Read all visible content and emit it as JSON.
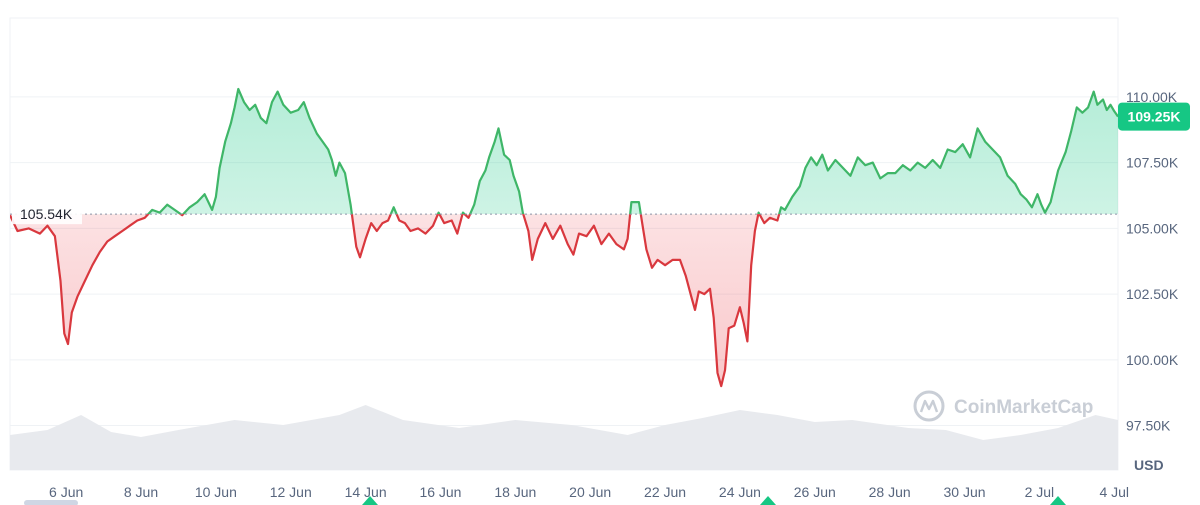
{
  "chart_data": {
    "type": "area",
    "currency": "USD",
    "reference_price": 105540,
    "reference_label": "105.54K",
    "current_price_label": "109.25K",
    "watermark": "CoinMarketCap",
    "colors": {
      "up": "#16c784",
      "up_line": "#3fb668",
      "down": "#ea3943",
      "down_line": "#d9383e",
      "grid": "#eff2f5",
      "volume": "#e8eaee"
    },
    "ylim": [
      96000,
      113000
    ],
    "y_ticks": [
      {
        "value": 110000,
        "label": "110.00K"
      },
      {
        "value": 107500,
        "label": "107.50K"
      },
      {
        "value": 105000,
        "label": "105.00K"
      },
      {
        "value": 102500,
        "label": "102.50K"
      },
      {
        "value": 100000,
        "label": "100.00K"
      },
      {
        "value": 97500,
        "label": "97.50K"
      }
    ],
    "xlim": [
      4.5,
      34.1
    ],
    "x_ticks": [
      {
        "day": 6,
        "label": "6 Jun"
      },
      {
        "day": 8,
        "label": "8 Jun"
      },
      {
        "day": 10,
        "label": "10 Jun"
      },
      {
        "day": 12,
        "label": "12 Jun"
      },
      {
        "day": 14,
        "label": "14 Jun"
      },
      {
        "day": 16,
        "label": "16 Jun"
      },
      {
        "day": 18,
        "label": "18 Jun"
      },
      {
        "day": 20,
        "label": "20 Jun"
      },
      {
        "day": 22,
        "label": "22 Jun"
      },
      {
        "day": 24,
        "label": "24 Jun"
      },
      {
        "day": 26,
        "label": "26 Jun"
      },
      {
        "day": 28,
        "label": "28 Jun"
      },
      {
        "day": 30,
        "label": "30 Jun"
      },
      {
        "day": 32,
        "label": "2 Jul"
      },
      {
        "day": 34,
        "label": "4 Jul"
      }
    ],
    "points": [
      [
        4.5,
        105500
      ],
      [
        4.7,
        104900
      ],
      [
        5.0,
        105000
      ],
      [
        5.3,
        104800
      ],
      [
        5.5,
        105100
      ],
      [
        5.7,
        104700
      ],
      [
        5.85,
        103000
      ],
      [
        5.95,
        101000
      ],
      [
        6.05,
        100600
      ],
      [
        6.15,
        101800
      ],
      [
        6.3,
        102400
      ],
      [
        6.5,
        103000
      ],
      [
        6.7,
        103600
      ],
      [
        6.9,
        104100
      ],
      [
        7.1,
        104500
      ],
      [
        7.3,
        104700
      ],
      [
        7.5,
        104900
      ],
      [
        7.7,
        105100
      ],
      [
        7.9,
        105300
      ],
      [
        8.1,
        105400
      ],
      [
        8.3,
        105700
      ],
      [
        8.5,
        105600
      ],
      [
        8.7,
        105900
      ],
      [
        8.9,
        105700
      ],
      [
        9.1,
        105500
      ],
      [
        9.3,
        105800
      ],
      [
        9.5,
        106000
      ],
      [
        9.7,
        106300
      ],
      [
        9.9,
        105700
      ],
      [
        10.0,
        106200
      ],
      [
        10.1,
        107300
      ],
      [
        10.25,
        108300
      ],
      [
        10.4,
        109000
      ],
      [
        10.5,
        109600
      ],
      [
        10.6,
        110300
      ],
      [
        10.75,
        109800
      ],
      [
        10.9,
        109500
      ],
      [
        11.05,
        109700
      ],
      [
        11.2,
        109200
      ],
      [
        11.35,
        109000
      ],
      [
        11.5,
        109800
      ],
      [
        11.65,
        110200
      ],
      [
        11.8,
        109700
      ],
      [
        12.0,
        109400
      ],
      [
        12.2,
        109500
      ],
      [
        12.35,
        109800
      ],
      [
        12.5,
        109200
      ],
      [
        12.7,
        108600
      ],
      [
        12.85,
        108300
      ],
      [
        13.0,
        108000
      ],
      [
        13.1,
        107600
      ],
      [
        13.2,
        107000
      ],
      [
        13.3,
        107500
      ],
      [
        13.45,
        107100
      ],
      [
        13.6,
        105900
      ],
      [
        13.75,
        104300
      ],
      [
        13.85,
        103900
      ],
      [
        14.0,
        104600
      ],
      [
        14.15,
        105200
      ],
      [
        14.3,
        104900
      ],
      [
        14.45,
        105200
      ],
      [
        14.6,
        105300
      ],
      [
        14.75,
        105800
      ],
      [
        14.9,
        105300
      ],
      [
        15.05,
        105200
      ],
      [
        15.2,
        104900
      ],
      [
        15.4,
        105000
      ],
      [
        15.6,
        104800
      ],
      [
        15.8,
        105100
      ],
      [
        15.95,
        105600
      ],
      [
        16.1,
        105200
      ],
      [
        16.3,
        105300
      ],
      [
        16.45,
        104800
      ],
      [
        16.6,
        105600
      ],
      [
        16.75,
        105400
      ],
      [
        16.9,
        105900
      ],
      [
        17.05,
        106800
      ],
      [
        17.2,
        107200
      ],
      [
        17.3,
        107700
      ],
      [
        17.45,
        108300
      ],
      [
        17.55,
        108800
      ],
      [
        17.7,
        107800
      ],
      [
        17.85,
        107600
      ],
      [
        17.95,
        107000
      ],
      [
        18.1,
        106400
      ],
      [
        18.2,
        105600
      ],
      [
        18.35,
        104900
      ],
      [
        18.45,
        103800
      ],
      [
        18.6,
        104600
      ],
      [
        18.8,
        105200
      ],
      [
        19.0,
        104600
      ],
      [
        19.2,
        105100
      ],
      [
        19.4,
        104400
      ],
      [
        19.55,
        104000
      ],
      [
        19.7,
        104800
      ],
      [
        19.9,
        104700
      ],
      [
        20.1,
        105100
      ],
      [
        20.3,
        104400
      ],
      [
        20.5,
        104800
      ],
      [
        20.7,
        104400
      ],
      [
        20.9,
        104200
      ],
      [
        21.0,
        104600
      ],
      [
        21.1,
        106000
      ],
      [
        21.3,
        106000
      ],
      [
        21.4,
        105100
      ],
      [
        21.5,
        104200
      ],
      [
        21.65,
        103500
      ],
      [
        21.8,
        103800
      ],
      [
        22.0,
        103600
      ],
      [
        22.2,
        103800
      ],
      [
        22.4,
        103800
      ],
      [
        22.55,
        103200
      ],
      [
        22.7,
        102400
      ],
      [
        22.8,
        101900
      ],
      [
        22.9,
        102600
      ],
      [
        23.05,
        102500
      ],
      [
        23.2,
        102700
      ],
      [
        23.3,
        101600
      ],
      [
        23.4,
        99500
      ],
      [
        23.5,
        99000
      ],
      [
        23.6,
        99600
      ],
      [
        23.7,
        101200
      ],
      [
        23.85,
        101300
      ],
      [
        24.0,
        102000
      ],
      [
        24.1,
        101400
      ],
      [
        24.2,
        100700
      ],
      [
        24.3,
        103600
      ],
      [
        24.4,
        104900
      ],
      [
        24.5,
        105600
      ],
      [
        24.65,
        105200
      ],
      [
        24.8,
        105400
      ],
      [
        25.0,
        105300
      ],
      [
        25.1,
        105800
      ],
      [
        25.2,
        105700
      ],
      [
        25.4,
        106200
      ],
      [
        25.6,
        106600
      ],
      [
        25.75,
        107300
      ],
      [
        25.9,
        107700
      ],
      [
        26.05,
        107400
      ],
      [
        26.2,
        107800
      ],
      [
        26.35,
        107200
      ],
      [
        26.55,
        107600
      ],
      [
        26.75,
        107300
      ],
      [
        26.95,
        107000
      ],
      [
        27.15,
        107700
      ],
      [
        27.35,
        107400
      ],
      [
        27.55,
        107500
      ],
      [
        27.75,
        106900
      ],
      [
        27.95,
        107100
      ],
      [
        28.15,
        107100
      ],
      [
        28.35,
        107400
      ],
      [
        28.55,
        107200
      ],
      [
        28.75,
        107500
      ],
      [
        28.95,
        107300
      ],
      [
        29.15,
        107600
      ],
      [
        29.35,
        107300
      ],
      [
        29.55,
        108000
      ],
      [
        29.75,
        107900
      ],
      [
        29.95,
        108200
      ],
      [
        30.15,
        107700
      ],
      [
        30.35,
        108800
      ],
      [
        30.55,
        108300
      ],
      [
        30.75,
        108000
      ],
      [
        30.95,
        107700
      ],
      [
        31.15,
        107000
      ],
      [
        31.35,
        106700
      ],
      [
        31.5,
        106300
      ],
      [
        31.65,
        106100
      ],
      [
        31.8,
        105800
      ],
      [
        31.95,
        106300
      ],
      [
        32.05,
        105900
      ],
      [
        32.15,
        105600
      ],
      [
        32.3,
        106000
      ],
      [
        32.5,
        107200
      ],
      [
        32.7,
        107900
      ],
      [
        32.85,
        108700
      ],
      [
        33.0,
        109600
      ],
      [
        33.15,
        109400
      ],
      [
        33.3,
        109600
      ],
      [
        33.45,
        110200
      ],
      [
        33.55,
        109700
      ],
      [
        33.7,
        109900
      ],
      [
        33.8,
        109500
      ],
      [
        33.9,
        109700
      ],
      [
        34.0,
        109450
      ],
      [
        34.1,
        109250
      ]
    ],
    "volume_profile": [
      [
        4.5,
        0.35
      ],
      [
        5.5,
        0.4
      ],
      [
        6.4,
        0.55
      ],
      [
        7.2,
        0.38
      ],
      [
        8.0,
        0.33
      ],
      [
        9.0,
        0.4
      ],
      [
        10.5,
        0.5
      ],
      [
        11.8,
        0.45
      ],
      [
        13.3,
        0.55
      ],
      [
        14.0,
        0.65
      ],
      [
        15.0,
        0.5
      ],
      [
        16.5,
        0.42
      ],
      [
        18.0,
        0.5
      ],
      [
        19.5,
        0.45
      ],
      [
        21.0,
        0.35
      ],
      [
        22.0,
        0.45
      ],
      [
        23.0,
        0.52
      ],
      [
        24.0,
        0.6
      ],
      [
        25.0,
        0.55
      ],
      [
        26.0,
        0.48
      ],
      [
        27.0,
        0.5
      ],
      [
        28.5,
        0.42
      ],
      [
        29.5,
        0.4
      ],
      [
        30.5,
        0.3
      ],
      [
        31.5,
        0.35
      ],
      [
        32.5,
        0.42
      ],
      [
        33.5,
        0.55
      ],
      [
        34.1,
        0.5
      ]
    ]
  }
}
